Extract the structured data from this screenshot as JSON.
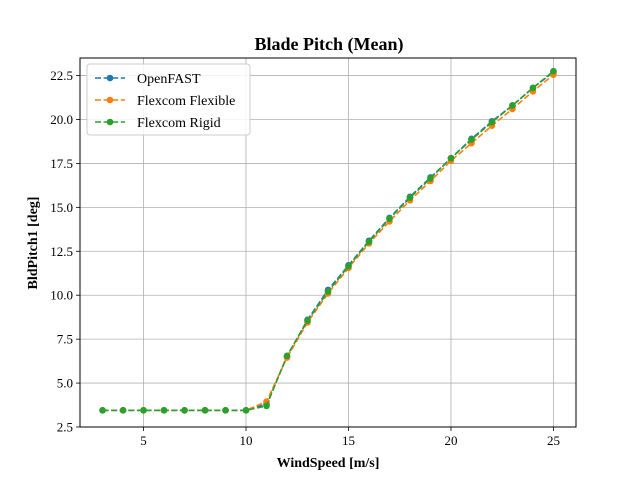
{
  "chart_data": {
    "type": "line",
    "title": "Blade Pitch (Mean)",
    "xlabel": "WindSpeed [m/s]",
    "ylabel": "BldPitch1 [deg]",
    "xlim": [
      1.9,
      26.1
    ],
    "ylim": [
      2.5,
      23.5
    ],
    "xticks": [
      5,
      10,
      15,
      20,
      25
    ],
    "yticks": [
      2.5,
      5.0,
      7.5,
      10.0,
      12.5,
      15.0,
      17.5,
      20.0,
      22.5
    ],
    "ytick_labels": [
      "2.5",
      "5.0",
      "7.5",
      "10.0",
      "12.5",
      "15.0",
      "17.5",
      "20.0",
      "22.5"
    ],
    "grid": true,
    "legend_position": "upper-left",
    "x": [
      3,
      4,
      5,
      6,
      7,
      8,
      9,
      10,
      11,
      12,
      13,
      14,
      15,
      16,
      17,
      18,
      19,
      20,
      21,
      22,
      23,
      24,
      25
    ],
    "series": [
      {
        "name": "OpenFAST",
        "color": "#1f77b4",
        "values": [
          3.45,
          3.45,
          3.45,
          3.45,
          3.45,
          3.45,
          3.45,
          3.45,
          3.8,
          6.5,
          8.6,
          10.3,
          11.7,
          13.1,
          14.4,
          15.6,
          16.7,
          17.8,
          18.9,
          19.9,
          20.8,
          21.8,
          22.7
        ]
      },
      {
        "name": "Flexcom Flexible",
        "color": "#ff7f0e",
        "values": [
          3.45,
          3.45,
          3.45,
          3.45,
          3.45,
          3.45,
          3.45,
          3.45,
          3.95,
          6.45,
          8.45,
          10.1,
          11.55,
          12.95,
          14.2,
          15.4,
          16.5,
          17.65,
          18.65,
          19.65,
          20.6,
          21.6,
          22.55
        ]
      },
      {
        "name": "Flexcom Rigid",
        "color": "#2ca02c",
        "values": [
          3.45,
          3.45,
          3.45,
          3.45,
          3.45,
          3.45,
          3.45,
          3.45,
          3.7,
          6.55,
          8.55,
          10.2,
          11.65,
          13.05,
          14.35,
          15.55,
          16.65,
          17.8,
          18.85,
          19.85,
          20.8,
          21.8,
          22.75
        ]
      }
    ]
  }
}
